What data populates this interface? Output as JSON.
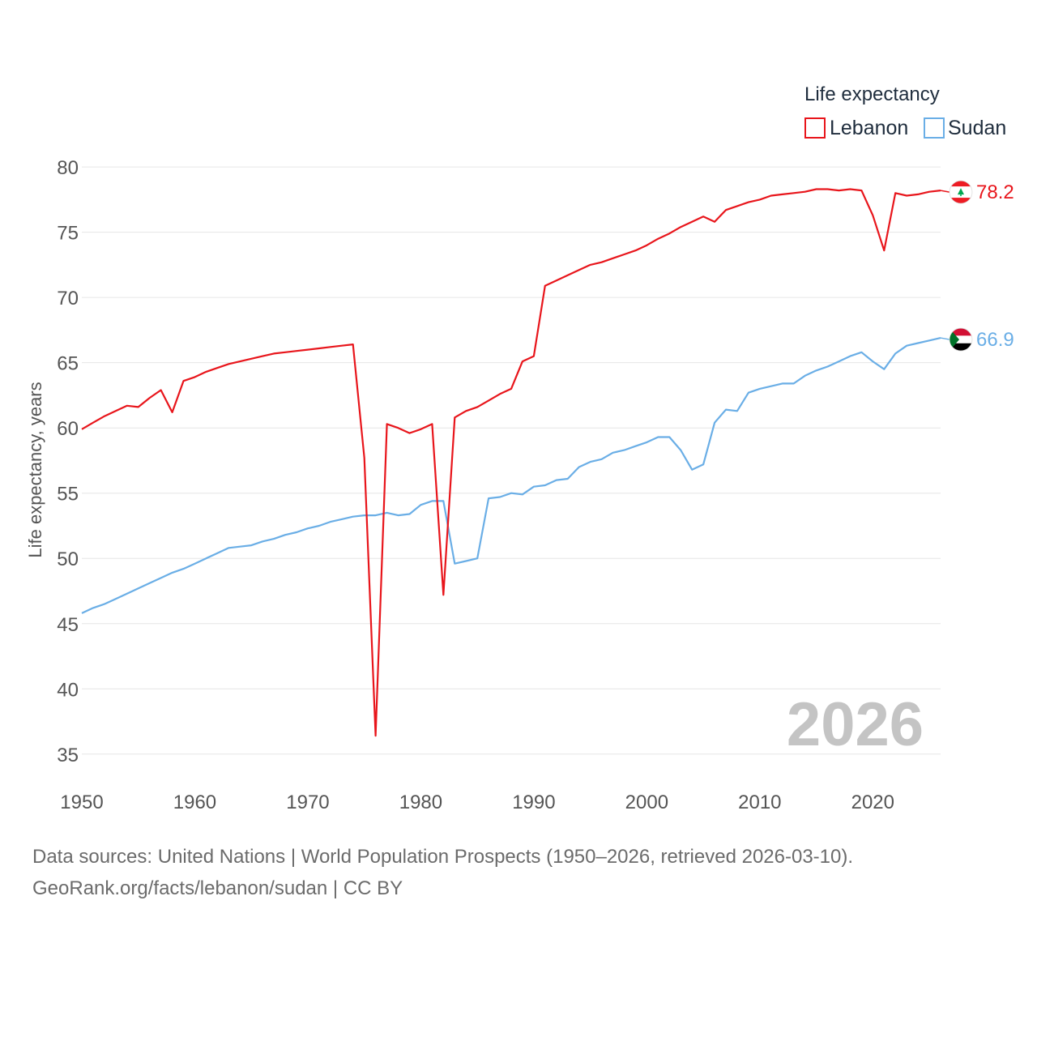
{
  "chart_data": {
    "type": "line",
    "title": "Life expectancy",
    "ylabel": "Life expectancy, years",
    "xlabel": "",
    "xlim": [
      1950,
      2026
    ],
    "ylim": [
      33,
      81
    ],
    "yticks": [
      35,
      40,
      45,
      50,
      55,
      60,
      65,
      70,
      75,
      80
    ],
    "xticks": [
      1950,
      1960,
      1970,
      1980,
      1990,
      2000,
      2010,
      2020
    ],
    "grid": true,
    "legend_position": "top-right",
    "current_year_label": "2026",
    "series": [
      {
        "name": "Lebanon",
        "color": "#e8151b",
        "flag": "lebanon-flag",
        "end_label": "78.2",
        "x": [
          1950,
          1951,
          1952,
          1953,
          1954,
          1955,
          1956,
          1957,
          1958,
          1959,
          1960,
          1961,
          1962,
          1963,
          1964,
          1965,
          1966,
          1967,
          1968,
          1969,
          1970,
          1971,
          1972,
          1973,
          1974,
          1975,
          1976,
          1977,
          1978,
          1979,
          1980,
          1981,
          1982,
          1983,
          1984,
          1985,
          1986,
          1987,
          1988,
          1989,
          1990,
          1991,
          1992,
          1993,
          1994,
          1995,
          1996,
          1997,
          1998,
          1999,
          2000,
          2001,
          2002,
          2003,
          2004,
          2005,
          2006,
          2007,
          2008,
          2009,
          2010,
          2011,
          2012,
          2013,
          2014,
          2015,
          2016,
          2017,
          2018,
          2019,
          2020,
          2021,
          2022,
          2023,
          2024,
          2025,
          2026
        ],
        "values": [
          59.9,
          60.4,
          60.9,
          61.3,
          61.7,
          61.6,
          62.3,
          62.9,
          61.2,
          63.6,
          63.9,
          64.3,
          64.6,
          64.9,
          65.1,
          65.3,
          65.5,
          65.7,
          65.8,
          65.9,
          66.0,
          66.1,
          66.2,
          66.3,
          66.4,
          57.7,
          36.4,
          60.3,
          60.0,
          59.6,
          59.9,
          60.3,
          47.2,
          60.8,
          61.3,
          61.6,
          62.1,
          62.6,
          63.0,
          65.1,
          65.5,
          70.9,
          71.3,
          71.7,
          72.1,
          72.5,
          72.7,
          73.0,
          73.3,
          73.6,
          74.0,
          74.5,
          74.9,
          75.4,
          75.8,
          76.2,
          75.8,
          76.7,
          77.0,
          77.3,
          77.5,
          77.8,
          77.9,
          78.0,
          78.1,
          78.3,
          78.3,
          78.2,
          78.3,
          78.2,
          76.3,
          73.6,
          78.0,
          77.8,
          77.9,
          78.1,
          78.2
        ]
      },
      {
        "name": "Sudan",
        "color": "#6aaee6",
        "flag": "sudan-flag",
        "end_label": "66.9",
        "x": [
          1950,
          1951,
          1952,
          1953,
          1954,
          1955,
          1956,
          1957,
          1958,
          1959,
          1960,
          1961,
          1962,
          1963,
          1964,
          1965,
          1966,
          1967,
          1968,
          1969,
          1970,
          1971,
          1972,
          1973,
          1974,
          1975,
          1976,
          1977,
          1978,
          1979,
          1980,
          1981,
          1982,
          1983,
          1984,
          1985,
          1986,
          1987,
          1988,
          1989,
          1990,
          1991,
          1992,
          1993,
          1994,
          1995,
          1996,
          1997,
          1998,
          1999,
          2000,
          2001,
          2002,
          2003,
          2004,
          2005,
          2006,
          2007,
          2008,
          2009,
          2010,
          2011,
          2012,
          2013,
          2014,
          2015,
          2016,
          2017,
          2018,
          2019,
          2020,
          2021,
          2022,
          2023,
          2024,
          2025,
          2026
        ],
        "values": [
          45.8,
          46.2,
          46.5,
          46.9,
          47.3,
          47.7,
          48.1,
          48.5,
          48.9,
          49.2,
          49.6,
          50.0,
          50.4,
          50.8,
          50.9,
          51.0,
          51.3,
          51.5,
          51.8,
          52.0,
          52.3,
          52.5,
          52.8,
          53.0,
          53.2,
          53.3,
          53.3,
          53.5,
          53.3,
          53.4,
          54.1,
          54.4,
          54.4,
          49.6,
          49.8,
          50.0,
          54.6,
          54.7,
          55.0,
          54.9,
          55.5,
          55.6,
          56.0,
          56.1,
          57.0,
          57.4,
          57.6,
          58.1,
          58.3,
          58.6,
          58.9,
          59.3,
          59.3,
          58.3,
          56.8,
          57.2,
          60.4,
          61.4,
          61.3,
          62.7,
          63.0,
          63.2,
          63.4,
          63.4,
          64.0,
          64.4,
          64.7,
          65.1,
          65.5,
          65.8,
          65.1,
          64.5,
          65.7,
          66.3,
          66.5,
          66.7,
          66.9
        ]
      }
    ]
  },
  "footer": {
    "line1": "Data sources: United Nations | World Population Prospects (1950–2026, retrieved 2026-03-10).",
    "line2": "GeoRank.org/facts/lebanon/sudan | CC BY"
  }
}
